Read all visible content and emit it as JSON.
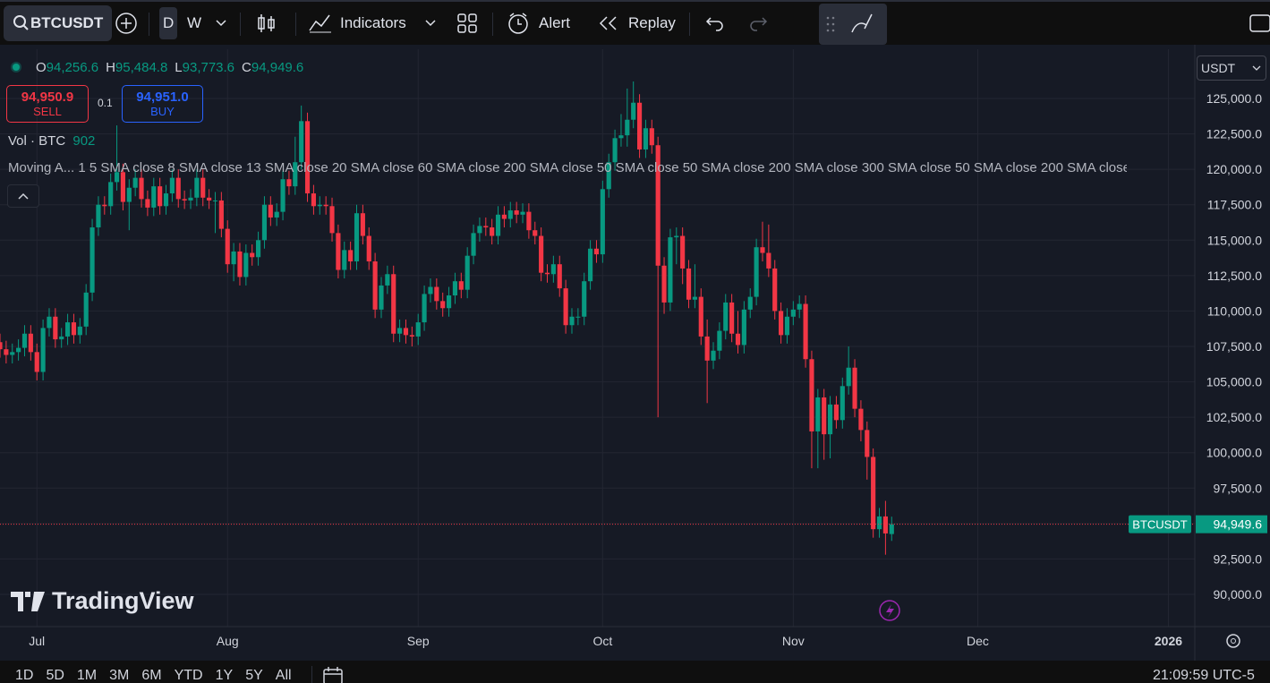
{
  "toolbar": {
    "symbol": "BTCUSDT",
    "intervals": [
      "D",
      "W"
    ],
    "indicators": "Indicators",
    "alert": "Alert",
    "replay": "Replay"
  },
  "legend": {
    "o": "O",
    "o_value": "94,256.6",
    "h": "H",
    "h_value": "95,484.8",
    "l": "L",
    "l_value": "93,773.6",
    "c": "C",
    "c_value": "94,949.6",
    "sell_price": "94,950.9",
    "sell": "SELL",
    "qty": "0.1",
    "buy_price": "94,951.0",
    "buy": "BUY",
    "vol": "Vol · BTC",
    "vol_value": "902",
    "ma_name": "Moving A...",
    "ma_params": "1 5 SMA close 8 SMA close 13 SMA close 20 SMA close 60 SMA close 200 SMA close 50 SMA close 50 SMA close 200 SMA close 300 SMA close 50 SMA close 200 SMA close"
  },
  "currency": "USDT",
  "watermark": "TradingView",
  "bottom_bar": {
    "ranges": [
      "1D",
      "5D",
      "1M",
      "3M",
      "6M",
      "YTD",
      "1Y",
      "5Y",
      "All"
    ],
    "clock": "21:09:59 UTC-5"
  },
  "chart_data": {
    "type": "candlestick",
    "up_color": "#089981",
    "down_color": "#f23645",
    "grid": true,
    "tag_symbol": "BTCUSDT",
    "tag_label": "94,949.6",
    "xlim": [
      0,
      194.3
    ],
    "xticks": [
      {
        "value": 6,
        "label": "Jul"
      },
      {
        "value": 37,
        "label": "Aug"
      },
      {
        "value": 68,
        "label": "Sep"
      },
      {
        "value": 98,
        "label": "Oct"
      },
      {
        "value": 129,
        "label": "Nov"
      },
      {
        "value": 159,
        "label": "Dec"
      },
      {
        "value": 190,
        "label": "2026"
      }
    ],
    "ylim": [
      87725,
      128475
    ],
    "yticks": [
      {
        "value": 90000,
        "label": "90,000.0"
      },
      {
        "value": 92500,
        "label": "92,500.0"
      },
      {
        "value": 95000,
        "label": "95,000.0"
      },
      {
        "value": 97500,
        "label": "97,500.0"
      },
      {
        "value": 100000,
        "label": "100,000.0"
      },
      {
        "value": 102500,
        "label": "102,500.0"
      },
      {
        "value": 105000,
        "label": "105,000.0"
      },
      {
        "value": 107500,
        "label": "107,500.0"
      },
      {
        "value": 110000,
        "label": "110,000.0"
      },
      {
        "value": 112500,
        "label": "112,500.0"
      },
      {
        "value": 115000,
        "label": "115,000.0"
      },
      {
        "value": 117500,
        "label": "117,500.0"
      },
      {
        "value": 120000,
        "label": "120,000.0"
      },
      {
        "value": 122500,
        "label": "122,500.0"
      },
      {
        "value": 125000,
        "label": "125,000.0"
      }
    ],
    "candles": [
      [
        107800,
        108400,
        106700,
        107300
      ],
      [
        107300,
        107900,
        106300,
        106900
      ],
      [
        106900,
        107700,
        106300,
        107100
      ],
      [
        107100,
        108000,
        106500,
        107400
      ],
      [
        107400,
        109000,
        106800,
        108400
      ],
      [
        108400,
        109000,
        106500,
        107100
      ],
      [
        107100,
        107700,
        105100,
        105700
      ],
      [
        105700,
        109400,
        105100,
        108800
      ],
      [
        108800,
        110200,
        108200,
        109600
      ],
      [
        109600,
        110200,
        107400,
        108000
      ],
      [
        108000,
        108800,
        107400,
        108200
      ],
      [
        108200,
        109800,
        107600,
        109200
      ],
      [
        109200,
        109800,
        107700,
        108300
      ],
      [
        108300,
        109500,
        107700,
        108900
      ],
      [
        108900,
        111900,
        108300,
        111300
      ],
      [
        111300,
        116500,
        110700,
        115900
      ],
      [
        115900,
        118100,
        115300,
        117500
      ],
      [
        117500,
        118100,
        116800,
        117400
      ],
      [
        117400,
        119700,
        116800,
        119100
      ],
      [
        119100,
        123100,
        118500,
        119800
      ],
      [
        119800,
        120400,
        117100,
        117700
      ],
      [
        117700,
        119300,
        115700,
        118700
      ],
      [
        118700,
        120000,
        118100,
        119400
      ],
      [
        119400,
        120000,
        117300,
        117900
      ],
      [
        117900,
        118500,
        116700,
        117300
      ],
      [
        117300,
        119400,
        116700,
        118800
      ],
      [
        118800,
        119400,
        116800,
        117400
      ],
      [
        117400,
        118900,
        116800,
        118300
      ],
      [
        118300,
        120000,
        117700,
        119400
      ],
      [
        119400,
        120000,
        117300,
        117900
      ],
      [
        117900,
        118500,
        117200,
        117800
      ],
      [
        117800,
        118600,
        117200,
        118000
      ],
      [
        118000,
        120000,
        117400,
        119400
      ],
      [
        119400,
        120000,
        117400,
        118000
      ],
      [
        118000,
        118600,
        117200,
        117800
      ],
      [
        117800,
        118400,
        115500,
        117800
      ],
      [
        117800,
        118400,
        115200,
        115800
      ],
      [
        115800,
        116400,
        112700,
        113300
      ],
      [
        113300,
        114800,
        112100,
        114200
      ],
      [
        114200,
        114800,
        111800,
        112400
      ],
      [
        112400,
        114700,
        111800,
        114100
      ],
      [
        114100,
        114700,
        113200,
        113800
      ],
      [
        113800,
        115600,
        113200,
        115000
      ],
      [
        115000,
        118100,
        114400,
        117500
      ],
      [
        117500,
        118100,
        116000,
        116600
      ],
      [
        116600,
        117600,
        116000,
        117000
      ],
      [
        117000,
        119900,
        116400,
        119300
      ],
      [
        119300,
        119900,
        118200,
        118800
      ],
      [
        118800,
        122300,
        118200,
        120500
      ],
      [
        120500,
        124500,
        120000,
        123400
      ],
      [
        123400,
        124000,
        117700,
        118300
      ],
      [
        118300,
        118900,
        116800,
        117400
      ],
      [
        117400,
        118100,
        116800,
        117500
      ],
      [
        117500,
        118100,
        116800,
        117400
      ],
      [
        117400,
        118000,
        114900,
        115500
      ],
      [
        115500,
        116100,
        112300,
        112900
      ],
      [
        112900,
        114900,
        112300,
        114300
      ],
      [
        114300,
        114900,
        112900,
        113500
      ],
      [
        113500,
        117500,
        112900,
        116900
      ],
      [
        116900,
        117500,
        114700,
        115300
      ],
      [
        115300,
        115900,
        112900,
        113500
      ],
      [
        113500,
        114100,
        109500,
        110100
      ],
      [
        110100,
        112400,
        109500,
        111800
      ],
      [
        111800,
        113200,
        111200,
        112600
      ],
      [
        112600,
        113200,
        107800,
        108400
      ],
      [
        108400,
        109400,
        107800,
        108800
      ],
      [
        108800,
        109400,
        107700,
        108300
      ],
      [
        108300,
        108900,
        107500,
        108200
      ],
      [
        108200,
        109800,
        107600,
        109200
      ],
      [
        109200,
        111800,
        108600,
        111200
      ],
      [
        111200,
        112300,
        110600,
        111700
      ],
      [
        111700,
        112300,
        110100,
        110700
      ],
      [
        110700,
        111300,
        109600,
        110200
      ],
      [
        110200,
        111700,
        109600,
        111100
      ],
      [
        111100,
        112700,
        110500,
        112100
      ],
      [
        112100,
        112700,
        110900,
        111500
      ],
      [
        111500,
        114500,
        110900,
        113900
      ],
      [
        113900,
        116100,
        113300,
        115500
      ],
      [
        115500,
        116600,
        114900,
        116000
      ],
      [
        116000,
        116600,
        115300,
        115900
      ],
      [
        115900,
        116500,
        114700,
        115300
      ],
      [
        115300,
        117400,
        114700,
        116800
      ],
      [
        116800,
        117400,
        115900,
        116500
      ],
      [
        116500,
        117700,
        115900,
        117100
      ],
      [
        117100,
        117700,
        116200,
        116800
      ],
      [
        116800,
        117600,
        116200,
        117000
      ],
      [
        117000,
        117600,
        115100,
        115700
      ],
      [
        115700,
        116300,
        114700,
        115300
      ],
      [
        115300,
        115900,
        112100,
        112700
      ],
      [
        112700,
        113300,
        112000,
        112600
      ],
      [
        112600,
        113900,
        112000,
        113300
      ],
      [
        113300,
        113900,
        111000,
        111600
      ],
      [
        111600,
        112200,
        108400,
        109000
      ],
      [
        109000,
        110200,
        108400,
        109600
      ],
      [
        109600,
        110200,
        109000,
        109600
      ],
      [
        109600,
        112700,
        109000,
        112100
      ],
      [
        112100,
        115000,
        111500,
        114400
      ],
      [
        114400,
        115000,
        113400,
        114000
      ],
      [
        114000,
        119200,
        113400,
        118600
      ],
      [
        118600,
        121100,
        118000,
        120500
      ],
      [
        120500,
        122800,
        119900,
        122200
      ],
      [
        122200,
        123900,
        121600,
        122400
      ],
      [
        122400,
        125700,
        121600,
        123500
      ],
      [
        123500,
        126200,
        122900,
        124700
      ],
      [
        124700,
        125300,
        120800,
        121400
      ],
      [
        121400,
        123500,
        120800,
        122900
      ],
      [
        122900,
        123500,
        121100,
        121700
      ],
      [
        121700,
        122300,
        102500,
        113200
      ],
      [
        113200,
        113800,
        109800,
        110600
      ],
      [
        110600,
        115800,
        110000,
        115200
      ],
      [
        115200,
        115900,
        113300,
        115300
      ],
      [
        115300,
        115900,
        111900,
        113000
      ],
      [
        113000,
        113600,
        110200,
        110800
      ],
      [
        110800,
        113300,
        110200,
        111000
      ],
      [
        111000,
        111600,
        107600,
        108200
      ],
      [
        108200,
        109400,
        103500,
        106500
      ],
      [
        106500,
        107800,
        105900,
        107200
      ],
      [
        107200,
        109200,
        106600,
        108600
      ],
      [
        108600,
        111200,
        108000,
        110600
      ],
      [
        110600,
        111200,
        107800,
        108400
      ],
      [
        108400,
        110000,
        107000,
        107600
      ],
      [
        107600,
        110700,
        107000,
        110100
      ],
      [
        110100,
        111600,
        109500,
        111000
      ],
      [
        111000,
        115100,
        110400,
        114500
      ],
      [
        114500,
        116300,
        113500,
        114100
      ],
      [
        114100,
        116100,
        112400,
        113000
      ],
      [
        113000,
        113600,
        109400,
        110000
      ],
      [
        110000,
        110600,
        107700,
        108300
      ],
      [
        108300,
        110200,
        107700,
        109600
      ],
      [
        109600,
        110700,
        109000,
        110100
      ],
      [
        110100,
        111100,
        109500,
        110500
      ],
      [
        110500,
        111100,
        106000,
        106600
      ],
      [
        106600,
        107200,
        98900,
        101500
      ],
      [
        101500,
        104500,
        98900,
        103900
      ],
      [
        103900,
        104500,
        99500,
        101300
      ],
      [
        101300,
        104000,
        99600,
        103400
      ],
      [
        103400,
        104000,
        101700,
        102300
      ],
      [
        102300,
        105300,
        101700,
        104700
      ],
      [
        104700,
        107500,
        104100,
        106000
      ],
      [
        106000,
        106600,
        102500,
        103100
      ],
      [
        103100,
        103700,
        100800,
        101600
      ],
      [
        101600,
        102200,
        98100,
        99700
      ],
      [
        99700,
        100300,
        94000,
        94600
      ],
      [
        94600,
        96100,
        94000,
        95500
      ],
      [
        95500,
        96600,
        92800,
        94300
      ],
      [
        94256.6,
        95484.8,
        93773.6,
        94949.6
      ]
    ]
  }
}
